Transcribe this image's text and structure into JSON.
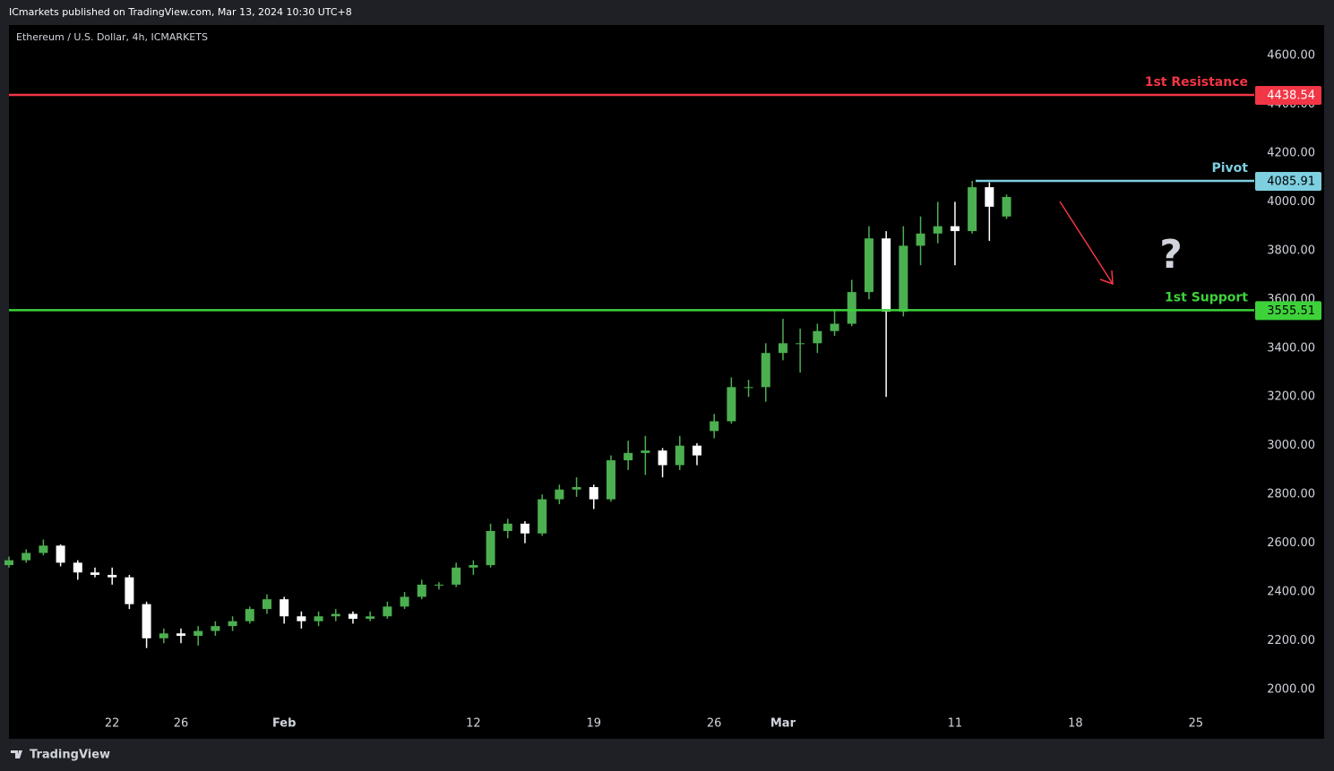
{
  "header": {
    "publisher": "ICmarkets published on TradingView.com, Mar 13, 2024 10:30 UTC+8"
  },
  "footer": {
    "brand": "TradingView"
  },
  "chart_data": {
    "type": "candlestick",
    "title": "Ethereum / U.S. Dollar, 4h, ICMARKETS",
    "x": [
      15,
      16,
      17,
      18,
      19,
      20,
      21,
      22,
      23,
      24,
      25,
      26,
      27,
      28,
      29,
      30,
      31,
      32,
      33,
      34,
      35,
      36,
      37,
      38,
      39,
      40,
      41,
      42,
      43,
      44,
      45,
      46,
      47,
      48,
      49,
      50,
      51,
      52,
      53,
      54,
      55,
      56,
      57,
      58,
      59,
      60,
      61,
      62,
      63,
      64,
      65,
      66,
      67,
      68,
      69,
      70,
      71,
      72,
      73
    ],
    "series": [
      {
        "up_color": "#4caf50",
        "down_color": "#ffffff",
        "open": [
          2510,
          2530,
          2560,
          2590,
          2520,
          2480,
          2470,
          2460,
          2350,
          2210,
          2230,
          2220,
          2240,
          2260,
          2280,
          2330,
          2370,
          2300,
          2280,
          2300,
          2310,
          2290,
          2300,
          2340,
          2380,
          2430,
          2430,
          2500,
          2510,
          2650,
          2680,
          2640,
          2780,
          2820,
          2830,
          2780,
          2940,
          2970,
          2980,
          2920,
          3000,
          3060,
          3100,
          3240,
          3240,
          3380,
          3420,
          3420,
          3470,
          3500,
          3630,
          3850,
          3550,
          3820,
          3870,
          3900,
          3880,
          4060,
          3940
        ],
        "high": [
          2545,
          2575,
          2615,
          2595,
          2530,
          2500,
          2500,
          2470,
          2360,
          2250,
          2250,
          2260,
          2280,
          2300,
          2340,
          2390,
          2380,
          2320,
          2320,
          2330,
          2320,
          2320,
          2360,
          2400,
          2450,
          2440,
          2520,
          2530,
          2680,
          2700,
          2690,
          2800,
          2840,
          2870,
          2840,
          2960,
          3020,
          3040,
          2990,
          3040,
          3010,
          3130,
          3280,
          3270,
          3420,
          3520,
          3480,
          3500,
          3560,
          3680,
          3900,
          3880,
          3900,
          3940,
          4000,
          4000,
          4086,
          4080,
          4030
        ],
        "low": [
          2500,
          2520,
          2550,
          2505,
          2450,
          2460,
          2430,
          2330,
          2170,
          2190,
          2190,
          2180,
          2220,
          2240,
          2270,
          2310,
          2270,
          2250,
          2260,
          2280,
          2270,
          2280,
          2290,
          2330,
          2370,
          2410,
          2420,
          2470,
          2500,
          2620,
          2600,
          2630,
          2760,
          2790,
          2740,
          2770,
          2900,
          2880,
          2870,
          2900,
          2920,
          3030,
          3090,
          3200,
          3180,
          3350,
          3300,
          3380,
          3450,
          3490,
          3600,
          3200,
          3530,
          3740,
          3830,
          3740,
          3870,
          3840,
          3930
        ],
        "close": [
          2530,
          2560,
          2590,
          2520,
          2480,
          2470,
          2460,
          2350,
          2210,
          2230,
          2220,
          2240,
          2260,
          2280,
          2330,
          2370,
          2300,
          2280,
          2300,
          2310,
          2290,
          2300,
          2340,
          2380,
          2430,
          2430,
          2500,
          2510,
          2650,
          2680,
          2640,
          2780,
          2820,
          2830,
          2780,
          2940,
          2970,
          2980,
          2920,
          3000,
          2960,
          3100,
          3240,
          3240,
          3380,
          3420,
          3420,
          3470,
          3500,
          3630,
          3850,
          3550,
          3820,
          3870,
          3900,
          3880,
          4060,
          3980,
          4020
        ]
      }
    ],
    "xlim": [
      15,
      87.4
    ],
    "xticks": [
      {
        "value": 21,
        "label": "22"
      },
      {
        "value": 25,
        "label": "26"
      },
      {
        "value": 31,
        "label": "Feb"
      },
      {
        "value": 42,
        "label": "12"
      },
      {
        "value": 49,
        "label": "19"
      },
      {
        "value": 56,
        "label": "26"
      },
      {
        "value": 60,
        "label": "Mar"
      },
      {
        "value": 70,
        "label": "11"
      },
      {
        "value": 77,
        "label": "18"
      },
      {
        "value": 84,
        "label": "25"
      }
    ],
    "ylim": [
      1908,
      4725
    ],
    "yticks": [
      {
        "value": 2000,
        "label": "2000.00"
      },
      {
        "value": 2200,
        "label": "2200.00"
      },
      {
        "value": 2400,
        "label": "2400.00"
      },
      {
        "value": 2600,
        "label": "2600.00"
      },
      {
        "value": 2800,
        "label": "2800.00"
      },
      {
        "value": 3000,
        "label": "3000.00"
      },
      {
        "value": 3200,
        "label": "3200.00"
      },
      {
        "value": 3400,
        "label": "3400.00"
      },
      {
        "value": 3600,
        "label": "3600.00"
      },
      {
        "value": 3800,
        "label": "3800.00"
      },
      {
        "value": 4000,
        "label": "4000.00"
      },
      {
        "value": 4200,
        "label": "4200.00"
      },
      {
        "value": 4400,
        "label": "4400.00"
      },
      {
        "value": 4600,
        "label": "4600.00"
      }
    ],
    "levels": [
      {
        "name": "1st Resistance",
        "value": 4438.54,
        "color": "#f23645",
        "text_color": "#ffffff"
      },
      {
        "name": "Pivot",
        "value": 4085.91,
        "color": "#7ecfe0",
        "text_color": "#000000",
        "start": 71.2
      },
      {
        "name": "1st Support",
        "value": 3555.51,
        "color": "#3ed23a",
        "text_color": "#000000"
      }
    ],
    "annotations": [
      "?"
    ]
  }
}
